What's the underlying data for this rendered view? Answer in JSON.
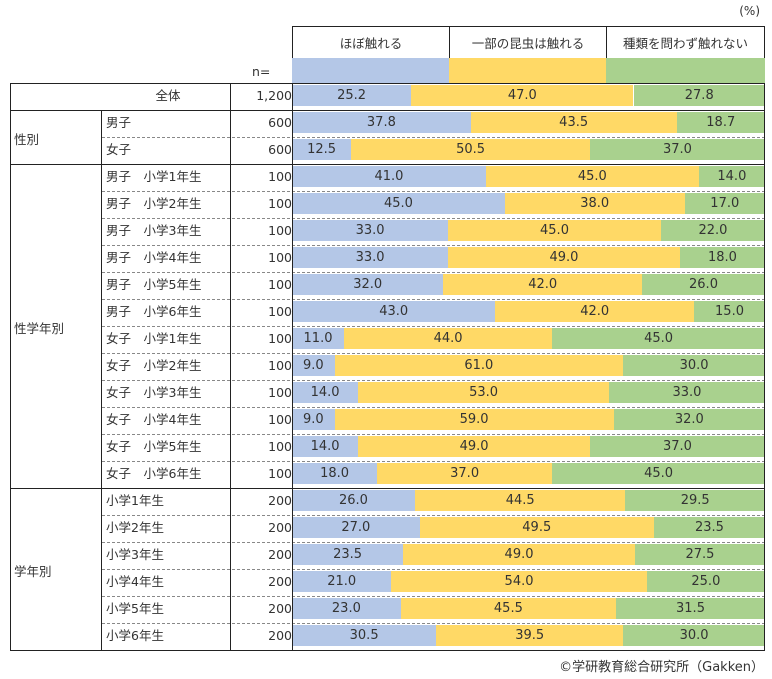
{
  "chart_data": {
    "type": "bar",
    "stacked": true,
    "orientation": "horizontal",
    "unit": "(%)",
    "n_label": "n=",
    "series": [
      {
        "name": "ほぼ触れる",
        "color": "#B4C7E7"
      },
      {
        "name": "一部の昆虫は触れる",
        "color": "#FFD966"
      },
      {
        "name": "種類を問わず触れない",
        "color": "#A9D18E"
      }
    ],
    "groups": [
      {
        "label": "",
        "rows": [
          {
            "label": "全体",
            "n": "1,200",
            "values": [
              "25.2",
              "47.0",
              "27.8"
            ]
          }
        ]
      },
      {
        "label": "性別",
        "rows": [
          {
            "label": "男子",
            "n": "600",
            "values": [
              "37.8",
              "43.5",
              "18.7"
            ]
          },
          {
            "label": "女子",
            "n": "600",
            "values": [
              "12.5",
              "50.5",
              "37.0"
            ]
          }
        ]
      },
      {
        "label": "性学年別",
        "rows": [
          {
            "label": "男子　小学1年生",
            "n": "100",
            "values": [
              "41.0",
              "45.0",
              "14.0"
            ]
          },
          {
            "label": "男子　小学2年生",
            "n": "100",
            "values": [
              "45.0",
              "38.0",
              "17.0"
            ]
          },
          {
            "label": "男子　小学3年生",
            "n": "100",
            "values": [
              "33.0",
              "45.0",
              "22.0"
            ]
          },
          {
            "label": "男子　小学4年生",
            "n": "100",
            "values": [
              "33.0",
              "49.0",
              "18.0"
            ]
          },
          {
            "label": "男子　小学5年生",
            "n": "100",
            "values": [
              "32.0",
              "42.0",
              "26.0"
            ]
          },
          {
            "label": "男子　小学6年生",
            "n": "100",
            "values": [
              "43.0",
              "42.0",
              "15.0"
            ]
          },
          {
            "label": "女子　小学1年生",
            "n": "100",
            "values": [
              "11.0",
              "44.0",
              "45.0"
            ]
          },
          {
            "label": "女子　小学2年生",
            "n": "100",
            "values": [
              "9.0",
              "61.0",
              "30.0"
            ]
          },
          {
            "label": "女子　小学3年生",
            "n": "100",
            "values": [
              "14.0",
              "53.0",
              "33.0"
            ]
          },
          {
            "label": "女子　小学4年生",
            "n": "100",
            "values": [
              "9.0",
              "59.0",
              "32.0"
            ]
          },
          {
            "label": "女子　小学5年生",
            "n": "100",
            "values": [
              "14.0",
              "49.0",
              "37.0"
            ]
          },
          {
            "label": "女子　小学6年生",
            "n": "100",
            "values": [
              "18.0",
              "37.0",
              "45.0"
            ]
          }
        ]
      },
      {
        "label": "学年別",
        "rows": [
          {
            "label": "小学1年生",
            "n": "200",
            "values": [
              "26.0",
              "44.5",
              "29.5"
            ]
          },
          {
            "label": "小学2年生",
            "n": "200",
            "values": [
              "27.0",
              "49.5",
              "23.5"
            ]
          },
          {
            "label": "小学3年生",
            "n": "200",
            "values": [
              "23.5",
              "49.0",
              "27.5"
            ]
          },
          {
            "label": "小学4年生",
            "n": "200",
            "values": [
              "21.0",
              "54.0",
              "25.0"
            ]
          },
          {
            "label": "小学5年生",
            "n": "200",
            "values": [
              "23.0",
              "45.5",
              "31.5"
            ]
          },
          {
            "label": "小学6年生",
            "n": "200",
            "values": [
              "30.5",
              "39.5",
              "30.0"
            ]
          }
        ]
      }
    ]
  },
  "credit": "©学研教育総合研究所（Gakken）"
}
